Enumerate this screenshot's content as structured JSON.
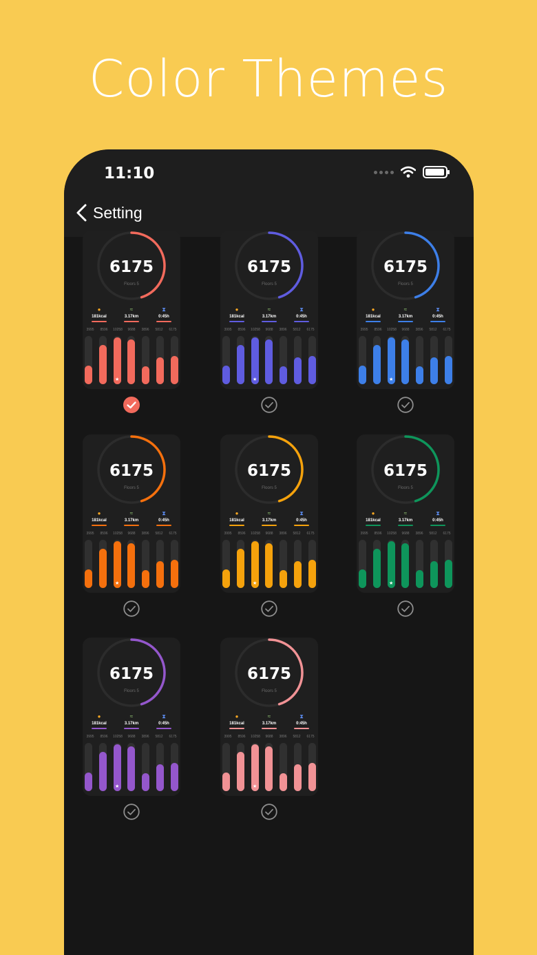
{
  "headline": "Color Themes",
  "status": {
    "time": "11:10"
  },
  "nav": {
    "back_label": "Setting"
  },
  "card_stats": {
    "steps": "6175",
    "floors": "Floors 5",
    "calories": "181kcal",
    "distance": "3.17km",
    "duration": "0:45h",
    "tick_labels": [
      "3995",
      "8596",
      "10258",
      "9688",
      "3896",
      "5812",
      "6175"
    ],
    "bar_values": [
      3995,
      8596,
      10258,
      9688,
      3896,
      5812,
      6175
    ],
    "bar_max": 10500,
    "ring_progress": 0.45
  },
  "themes": [
    {
      "name": "coral",
      "color": "#F26A5C",
      "selected": true
    },
    {
      "name": "indigo",
      "color": "#5F5CE0",
      "selected": false
    },
    {
      "name": "blue",
      "color": "#3D7FE8",
      "selected": false
    },
    {
      "name": "orange",
      "color": "#F5700D",
      "selected": false
    },
    {
      "name": "amber",
      "color": "#F5A20C",
      "selected": false
    },
    {
      "name": "green",
      "color": "#0E955B",
      "selected": false
    },
    {
      "name": "purple",
      "color": "#9457CC",
      "selected": false
    },
    {
      "name": "pink",
      "color": "#F19295",
      "selected": false
    }
  ],
  "colors": {
    "background": "#F9CB52",
    "phone": "#161616",
    "card": "#1F1F1F",
    "unselected_check": "#8E8E8E"
  }
}
